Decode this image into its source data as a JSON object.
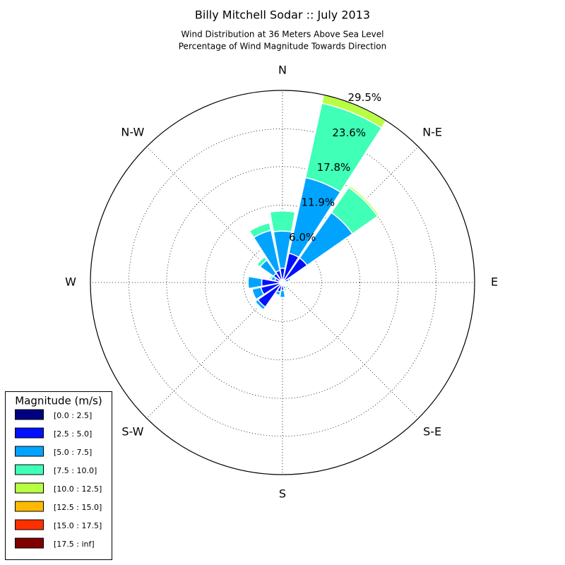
{
  "chart_data": {
    "type": "windrose",
    "title": "Billy Mitchell Sodar :: July 2013",
    "subtitle": [
      "Wind Distribution at 36 Meters Above Sea Level",
      "Percentage of Wind Magnitude Towards Direction"
    ],
    "categories": [
      "N",
      null,
      "N-E",
      null,
      "E",
      null,
      "S-E",
      null,
      "S",
      null,
      "S-W",
      null,
      "W",
      null,
      "N-W",
      null
    ],
    "rlim": [
      0,
      29.5
    ],
    "rticks": [
      {
        "value": 6,
        "label": "6.0%"
      },
      {
        "value": 11.9,
        "label": "11.9%"
      },
      {
        "value": 17.8,
        "label": "17.8%"
      },
      {
        "value": 23.6,
        "label": "23.6%"
      },
      {
        "value": 29.5,
        "label": "29.5%"
      }
    ],
    "grid": true,
    "legend_title": "Magnitude (m/s)",
    "legend_position": "lower left",
    "series": [
      {
        "name": "[0.0 : 2.5]",
        "color": "#000080",
        "values": [
          0.2,
          0.2,
          0.2,
          0.2,
          0.2,
          0.2,
          0.2,
          0.2,
          0.2,
          0.2,
          0.2,
          0.2,
          0.2,
          0.2,
          0.2,
          0.2
        ]
      },
      {
        "name": "[2.5 : 5.0]",
        "color": "#0010ff",
        "values": [
          2.0,
          4.4,
          4.4,
          0.8,
          0.5,
          0.3,
          0.3,
          0.4,
          1.0,
          1.3,
          4.4,
          3.2,
          3.0,
          1.0,
          1.5,
          1.7
        ]
      },
      {
        "name": "[5.0 : 7.5]",
        "color": "#00a4ff",
        "values": [
          5.7,
          11.9,
          8.5,
          0.3,
          0.2,
          0.1,
          0.2,
          0.4,
          1.1,
          0.5,
          0.5,
          1.4,
          2.1,
          0.6,
          2.5,
          6.3
        ]
      },
      {
        "name": "[7.5 : 10.0]",
        "color": "#40ffb7",
        "values": [
          3.1,
          11.7,
          4.7,
          0,
          0,
          0,
          0.1,
          0.3,
          0.1,
          0.1,
          0.2,
          0.1,
          0.2,
          0.3,
          0.6,
          1.2
        ]
      },
      {
        "name": "[10.0 : 12.5]",
        "color": "#b7ff40",
        "values": [
          0,
          1.3,
          0.3,
          0,
          0,
          0,
          0,
          0,
          0,
          0,
          0,
          0,
          0,
          0,
          0,
          0.1
        ]
      },
      {
        "name": "[12.5 : 15.0]",
        "color": "#ffb900",
        "values": [
          0,
          0,
          0.1,
          0,
          0,
          0,
          0,
          0,
          0,
          0,
          0,
          0,
          0,
          0,
          0,
          0
        ]
      },
      {
        "name": "[15.0 : 17.5]",
        "color": "#ff3000",
        "values": [
          0,
          0,
          0,
          0,
          0,
          0,
          0,
          0,
          0,
          0,
          0,
          0,
          0,
          0,
          0,
          0
        ]
      },
      {
        "name": "[17.5 : inf]",
        "color": "#800000",
        "values": [
          0,
          0,
          0,
          0,
          0,
          0,
          0,
          0,
          0,
          0,
          0,
          0,
          0,
          0,
          0,
          0
        ]
      }
    ]
  }
}
